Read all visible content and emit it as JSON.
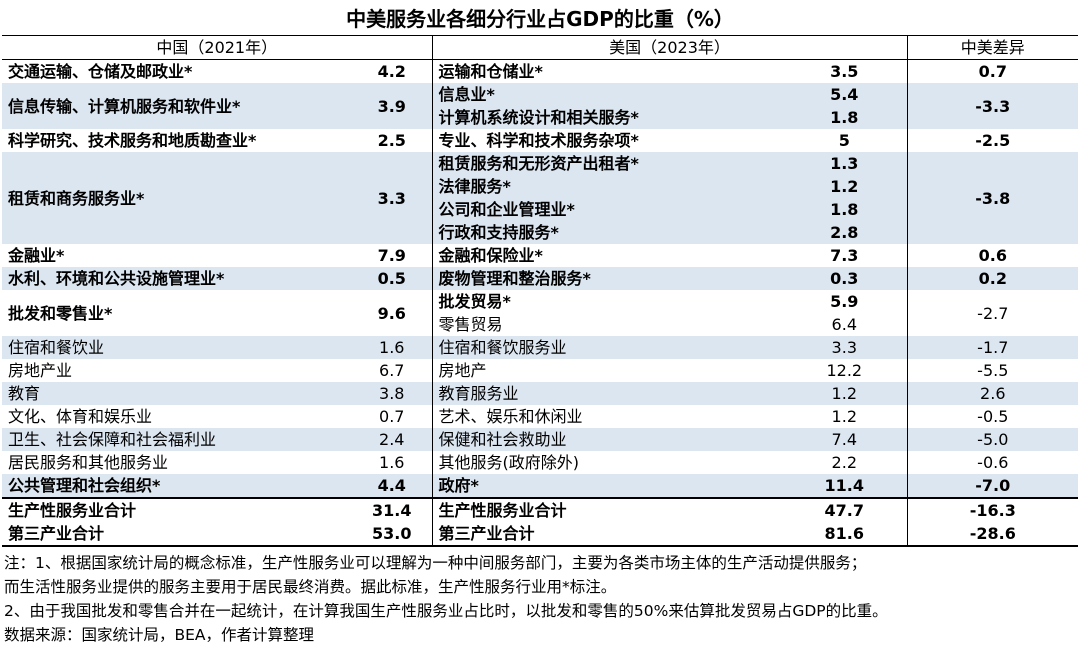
{
  "title": "中美服务业各细分行业占GDP的比重（%）",
  "header": [
    "中国（2021年）",
    "美国（2023年）",
    "中美差异"
  ],
  "rows": [
    {
      "cn": "交通运输、仓储及邮政业*",
      "cn_value": "4.2",
      "bold": true,
      "us": [
        {
          "name": "运输和仓储业*",
          "value": "3.5",
          "bold": true
        }
      ],
      "diff": "0.7"
    },
    {
      "cn": "信息传输、计算机服务和软件业*",
      "cn_value": "3.9",
      "bold": true,
      "us": [
        {
          "name": "信息业*",
          "value": "5.4",
          "bold": true
        },
        {
          "name": "计算机系统设计和相关服务*",
          "value": "1.8",
          "bold": true
        }
      ],
      "diff": "-3.3"
    },
    {
      "cn": "科学研究、技术服务和地质勘查业*",
      "cn_value": "2.5",
      "bold": true,
      "us": [
        {
          "name": "专业、科学和技术服务杂项*",
          "value": "5",
          "bold": true
        }
      ],
      "diff": "-2.5"
    },
    {
      "cn": "租赁和商务服务业*",
      "cn_value": "3.3",
      "bold": true,
      "us": [
        {
          "name": "租赁服务和无形资产出租者*",
          "value": "1.3",
          "bold": true
        },
        {
          "name": "法律服务*",
          "value": "1.2",
          "bold": true
        },
        {
          "name": "公司和企业管理业*",
          "value": "1.8",
          "bold": true
        },
        {
          "name": "行政和支持服务*",
          "value": "2.8",
          "bold": true
        }
      ],
      "diff": "-3.8"
    },
    {
      "cn": "金融业*",
      "cn_value": "7.9",
      "bold": true,
      "us": [
        {
          "name": "金融和保险业*",
          "value": "7.3",
          "bold": true
        }
      ],
      "diff": "0.6"
    },
    {
      "cn": "水利、环境和公共设施管理业*",
      "cn_value": "0.5",
      "bold": true,
      "us": [
        {
          "name": "废物管理和整治服务*",
          "value": "0.3",
          "bold": true
        }
      ],
      "diff": "0.2"
    },
    {
      "cn": "批发和零售业*",
      "cn_value": "9.6",
      "bold": true,
      "us": [
        {
          "name": "批发贸易*",
          "value": "5.9",
          "bold": true
        },
        {
          "name": "零售贸易",
          "value": "6.4",
          "bold": false
        }
      ],
      "diff": "-2.7"
    },
    {
      "cn": "住宿和餐饮业",
      "cn_value": "1.6",
      "bold": false,
      "us": [
        {
          "name": "住宿和餐饮服务业",
          "value": "3.3",
          "bold": false
        }
      ],
      "diff": "-1.7"
    },
    {
      "cn": "房地产业",
      "cn_value": "6.7",
      "bold": false,
      "us": [
        {
          "name": "房地产",
          "value": "12.2",
          "bold": false
        }
      ],
      "diff": "-5.5"
    },
    {
      "cn": "教育",
      "cn_value": "3.8",
      "bold": false,
      "us": [
        {
          "name": "教育服务业",
          "value": "1.2",
          "bold": false
        }
      ],
      "diff": "2.6"
    },
    {
      "cn": "文化、体育和娱乐业",
      "cn_value": "0.7",
      "bold": false,
      "us": [
        {
          "name": "艺术、娱乐和休闲业",
          "value": "1.2",
          "bold": false
        }
      ],
      "diff": "-0.5"
    },
    {
      "cn": "卫生、社会保障和社会福利业",
      "cn_value": "2.4",
      "bold": false,
      "us": [
        {
          "name": "保健和社会救助业",
          "value": "7.4",
          "bold": false
        }
      ],
      "diff": "-5.0"
    },
    {
      "cn": "居民服务和其他服务业",
      "cn_value": "1.6",
      "bold": false,
      "us": [
        {
          "name": "其他服务(政府除外)",
          "value": "2.2",
          "bold": false
        }
      ],
      "diff": "-0.6"
    },
    {
      "cn": "公共管理和社会组织*",
      "cn_value": "4.4",
      "bold": true,
      "us": [
        {
          "name": "政府*",
          "value": "11.4",
          "bold": true
        }
      ],
      "diff": "-7.0"
    }
  ],
  "totals": [
    {
      "cn": "生产性服务业合计",
      "cn_value": "31.4",
      "us": "生产性服务业合计",
      "us_value": "47.7",
      "diff": "-16.3"
    },
    {
      "cn": "第三产业合计",
      "cn_value": "53.0",
      "us": "第三产业合计",
      "us_value": "81.6",
      "diff": "-28.6"
    }
  ],
  "notes": [
    "注：1、根据国家统计局的概念标准，生产性服务业可以理解为一种中间服务部门，主要为各类市场主体的生产活动提供服务；",
    "而生活性服务业提供的服务主要用于居民最终消费。据此标准，生产性服务行业用*标注。",
    "2、由于我国批发和零售合并在一起统计，在计算我国生产性服务业占比时，以批发和零售的50%来估算批发贸易占GDP的比重。",
    "数据来源：国家统计局，BEA，作者计算整理"
  ]
}
